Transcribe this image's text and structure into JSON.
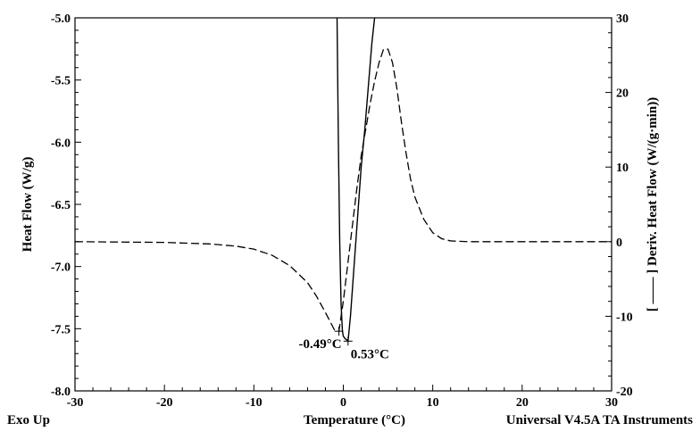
{
  "chart_data": {
    "type": "line",
    "footer": {
      "left": "Exo Up",
      "right": "Universal V4.5A TA Instruments"
    },
    "xlabel": "Temperature (°C)",
    "ylabel": "Heat Flow (W/g)",
    "y2label": "[ —— ] Deriv. Heat Flow (W/(g·min))",
    "xlim": [
      -30,
      30
    ],
    "ylim": [
      -8.0,
      -5.0
    ],
    "y2lim": [
      -20,
      30
    ],
    "x_ticks": [
      -30,
      -20,
      -10,
      0,
      10,
      20,
      30
    ],
    "y_ticks": [
      -8.0,
      -7.5,
      -7.0,
      -6.5,
      -6.0,
      -5.5,
      -5.0
    ],
    "y_tick_labels": [
      "-8.0",
      "-7.5",
      "-7.0",
      "-6.5",
      "-6.0",
      "-5.5",
      "-5.0"
    ],
    "y2_ticks": [
      -20,
      -10,
      0,
      10,
      20,
      30
    ],
    "grid": false,
    "series": [
      {
        "axis": "left",
        "style": "solid",
        "x": [
          -0.7,
          -0.55,
          -0.4,
          -0.25,
          -0.1,
          0.0,
          0.2,
          0.4,
          0.53,
          0.8,
          1.2,
          1.6,
          2.0,
          2.4,
          2.8,
          3.2,
          3.5
        ],
        "y": [
          -5.0,
          -6.0,
          -6.8,
          -7.3,
          -7.52,
          -7.56,
          -7.58,
          -7.59,
          -7.6,
          -7.4,
          -7.0,
          -6.6,
          -6.2,
          -5.9,
          -5.55,
          -5.2,
          -5.0
        ]
      },
      {
        "axis": "right",
        "style": "dashed",
        "x": [
          -30,
          -20,
          -15,
          -12,
          -10,
          -8,
          -6,
          -4,
          -3,
          -2,
          -1,
          -0.49,
          0.0,
          0.5,
          1.0,
          1.5,
          2.0,
          2.5,
          3.0,
          3.5,
          4.0,
          4.5,
          5.0,
          5.5,
          6.0,
          6.5,
          7.0,
          7.5,
          8.0,
          9.0,
          10.0,
          11.0,
          12.0,
          14.0,
          20.0,
          30.0
        ],
        "y": [
          0,
          -0.1,
          -0.3,
          -0.6,
          -1.0,
          -1.8,
          -3.2,
          -5.5,
          -7.3,
          -9.5,
          -11.8,
          -12.0,
          -8.0,
          -3.0,
          2.0,
          7.0,
          11.5,
          15.0,
          18.5,
          21.5,
          24.0,
          25.8,
          25.8,
          24.0,
          20.5,
          16.0,
          12.0,
          8.5,
          6.0,
          3.0,
          1.2,
          0.4,
          0.1,
          0.0,
          0.0,
          0.0
        ]
      }
    ],
    "annotations": [
      {
        "text": "-0.49°C",
        "x": -0.49,
        "y_right": -12.0,
        "anchor": "end"
      },
      {
        "text": "0.53°C",
        "x": 0.53,
        "y": -7.6,
        "anchor": "start"
      }
    ]
  }
}
